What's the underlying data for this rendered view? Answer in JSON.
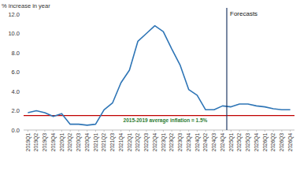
{
  "chart_data": {
    "type": "line",
    "y_label": "% increase in year",
    "categories": [
      "2019Q1",
      "2019Q2",
      "2019Q3",
      "2019Q4",
      "2020Q1",
      "2020Q2",
      "2020Q3",
      "2020Q4",
      "2021Q1",
      "2021Q2",
      "2021Q3",
      "2021Q4",
      "2022Q1",
      "2022Q2",
      "2022Q3",
      "2022Q4",
      "2023Q1",
      "2023Q2",
      "2023Q3",
      "2023Q4",
      "2024Q1",
      "2024Q2",
      "2024Q3",
      "2024Q4",
      "2025Q1",
      "2025Q2",
      "2025Q3",
      "2025Q4",
      "2026Q1",
      "2026Q2",
      "2026Q3",
      "2026Q4"
    ],
    "values": [
      1.8,
      2.0,
      1.8,
      1.4,
      1.7,
      0.6,
      0.6,
      0.5,
      0.6,
      2.1,
      2.8,
      4.9,
      6.2,
      9.2,
      10.0,
      10.8,
      10.2,
      8.4,
      6.7,
      4.2,
      3.6,
      2.1,
      2.1,
      2.5,
      2.4,
      2.7,
      2.7,
      2.5,
      2.4,
      2.2,
      2.1,
      2.1
    ],
    "color": "#2e75b6",
    "ylim": [
      0,
      12
    ],
    "yticks": [
      {
        "value": 0,
        "label": "0.0"
      },
      {
        "value": 2,
        "label": "2.0"
      },
      {
        "value": 4,
        "label": "4.0"
      },
      {
        "value": 6,
        "label": "6.0"
      },
      {
        "value": 8,
        "label": "8.0"
      },
      {
        "value": 10,
        "label": "10.0"
      },
      {
        "value": 12,
        "label": "12.0"
      }
    ],
    "grid": false,
    "reference_lines": [
      {
        "value": 1.5,
        "label": "2015-2019 average inflation = 1.5%",
        "color": "#c00000"
      }
    ],
    "annotations": [
      {
        "text": "Forecasts",
        "x": "2024Q4"
      }
    ]
  }
}
